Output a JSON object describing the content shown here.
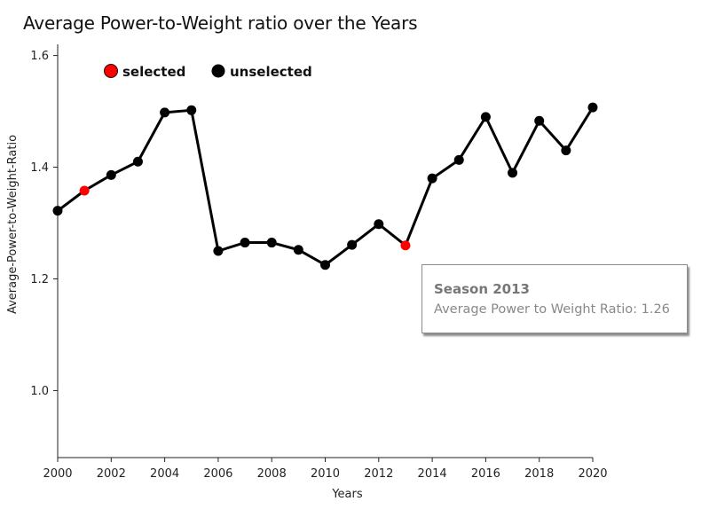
{
  "chart_data": {
    "type": "line",
    "title": "Average Power-to-Weight ratio over the Years",
    "xlabel": "Years",
    "ylabel": "Average-Power-to-Weight-Ratio",
    "xlim": [
      2000,
      2020
    ],
    "ylim": [
      0.88,
      1.62
    ],
    "x_ticks": [
      2000,
      2002,
      2004,
      2006,
      2008,
      2010,
      2012,
      2014,
      2016,
      2018,
      2020
    ],
    "y_ticks": [
      1.0,
      1.2,
      1.4,
      1.6
    ],
    "grid": false,
    "legend": {
      "placement": "top-left",
      "entries": [
        {
          "label": "selected",
          "color": "#ff0000"
        },
        {
          "label": "unselected",
          "color": "#000000"
        }
      ]
    },
    "series": [
      {
        "x": [
          2000,
          2001,
          2002,
          2003,
          2004,
          2005,
          2006,
          2007,
          2008,
          2009,
          2010,
          2011,
          2012,
          2013,
          2014,
          2015,
          2016,
          2017,
          2018,
          2019,
          2020
        ],
        "y": [
          1.322,
          1.358,
          1.386,
          1.41,
          1.498,
          1.502,
          1.25,
          1.265,
          1.265,
          1.252,
          1.225,
          1.261,
          1.298,
          1.26,
          1.38,
          1.413,
          1.49,
          1.39,
          1.483,
          1.43,
          1.507
        ],
        "selected": [
          2001,
          2013
        ],
        "line_color": "#000000"
      }
    ],
    "tooltip": {
      "title": "Season 2013",
      "text": "Average Power to Weight Ratio: 1.26"
    }
  }
}
